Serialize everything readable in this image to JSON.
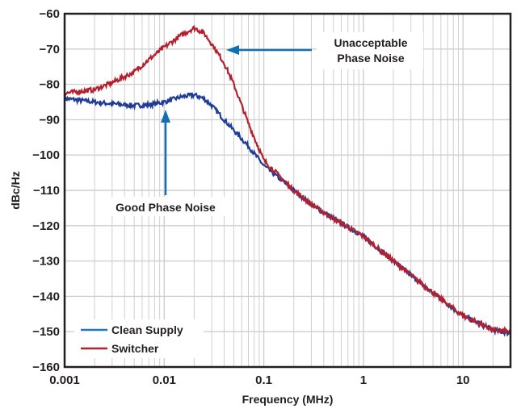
{
  "chart_data": {
    "type": "line",
    "title": "",
    "xlabel": "Frequency (MHz)",
    "ylabel": "dBc/Hz",
    "xscale": "log",
    "xlim": [
      0.001,
      30
    ],
    "ylim": [
      -160,
      -60
    ],
    "xticks": [
      0.001,
      0.01,
      0.1,
      1,
      10
    ],
    "xtick_labels": [
      "0.001",
      "0.01",
      "0.1",
      "1",
      "10"
    ],
    "yticks": [
      -60,
      -70,
      -80,
      -90,
      -100,
      -110,
      -120,
      -130,
      -140,
      -150,
      -160
    ],
    "ytick_labels": [
      "−60",
      "−70",
      "−80",
      "−90",
      "−100",
      "−110",
      "−120",
      "−130",
      "−140",
      "−150",
      "−160"
    ],
    "grid": true,
    "legend_position": "bottom-left",
    "series": [
      {
        "name": "Clean Supply",
        "color": "#1f3c96",
        "legend_color": "#2176c0",
        "x": [
          0.001,
          0.002,
          0.003,
          0.005,
          0.007,
          0.01,
          0.015,
          0.02,
          0.025,
          0.03,
          0.04,
          0.05,
          0.07,
          0.1,
          0.2,
          0.3,
          0.5,
          1,
          2,
          3,
          5,
          10,
          20,
          30
        ],
        "y": [
          -84,
          -85,
          -85.5,
          -86,
          -85.8,
          -85,
          -83.5,
          -83,
          -84,
          -86,
          -90,
          -93,
          -97.5,
          -103,
          -110,
          -114,
          -118,
          -123,
          -130,
          -134,
          -139,
          -145.5,
          -149.5,
          -150.5
        ]
      },
      {
        "name": "Switcher",
        "color": "#b5202e",
        "legend_color": "#b5202e",
        "x": [
          0.001,
          0.002,
          0.003,
          0.005,
          0.007,
          0.01,
          0.015,
          0.02,
          0.025,
          0.03,
          0.04,
          0.05,
          0.06,
          0.07,
          0.08,
          0.1,
          0.2,
          0.3,
          0.5,
          1,
          2,
          3,
          5,
          10,
          20,
          30
        ],
        "y": [
          -82.5,
          -81.5,
          -79.5,
          -76.5,
          -73,
          -69.5,
          -66,
          -64,
          -65.5,
          -68.5,
          -74,
          -80,
          -86,
          -91,
          -95,
          -101.5,
          -110,
          -114,
          -118,
          -123,
          -130,
          -134,
          -139,
          -145.5,
          -149.5,
          -150
        ]
      }
    ],
    "annotations": [
      {
        "text": "Unacceptable Phase Noise",
        "lines": [
          "Unacceptable",
          "Phase Noise"
        ],
        "points_to": {
          "x": 0.035,
          "y": -70
        },
        "arrow_color": "#1170b3"
      },
      {
        "text": "Good Phase Noise",
        "points_to": {
          "x": 0.01,
          "y": -87
        },
        "arrow_color": "#1170b3"
      }
    ]
  }
}
